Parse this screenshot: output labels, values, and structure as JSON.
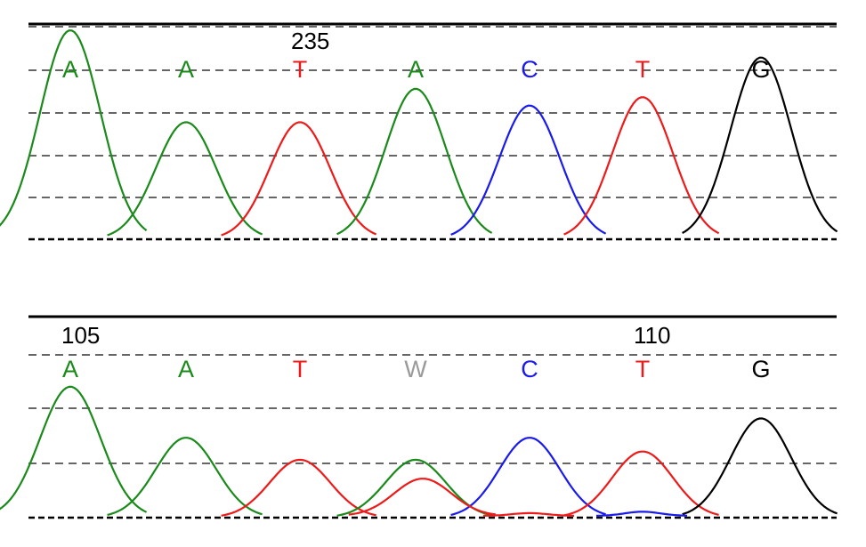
{
  "colors": {
    "A": "#1a8a1a",
    "C": "#1a1aee",
    "G": "#000000",
    "T": "#ee1a1a",
    "W": "#9a9a9a"
  },
  "chart_data": [
    {
      "type": "line",
      "position_label": "235",
      "position_label_index": 2,
      "bases": [
        "A",
        "A",
        "T",
        "A",
        "C",
        "T",
        "G"
      ],
      "peaks": [
        {
          "base": "A",
          "height": 1.0
        },
        {
          "base": "A",
          "height": 0.56
        },
        {
          "base": "T",
          "height": 0.56
        },
        {
          "base": "A",
          "height": 0.72
        },
        {
          "base": "C",
          "height": 0.64
        },
        {
          "base": "T",
          "height": 0.68
        },
        {
          "base": "G",
          "height": 0.87
        }
      ],
      "secondary_peaks": []
    },
    {
      "type": "line",
      "position_labels": [
        {
          "label": "105",
          "index": 0
        },
        {
          "label": "110",
          "index": 5
        }
      ],
      "bases": [
        "A",
        "A",
        "T",
        "W",
        "C",
        "T",
        "G"
      ],
      "peaks": [
        {
          "base": "A",
          "height": 0.95
        },
        {
          "base": "A",
          "height": 0.58
        },
        {
          "base": "T",
          "height": 0.42
        },
        {
          "base": "A",
          "height": 0.42
        },
        {
          "base": "C",
          "height": 0.58
        },
        {
          "base": "T",
          "height": 0.48
        },
        {
          "base": "G",
          "height": 0.72
        }
      ],
      "secondary_peaks": [
        {
          "base": "T",
          "index": 3,
          "height": 0.27
        },
        {
          "base": "T",
          "index": 4,
          "height": 0.02
        },
        {
          "base": "C",
          "index": 5,
          "height": 0.03
        }
      ]
    }
  ]
}
